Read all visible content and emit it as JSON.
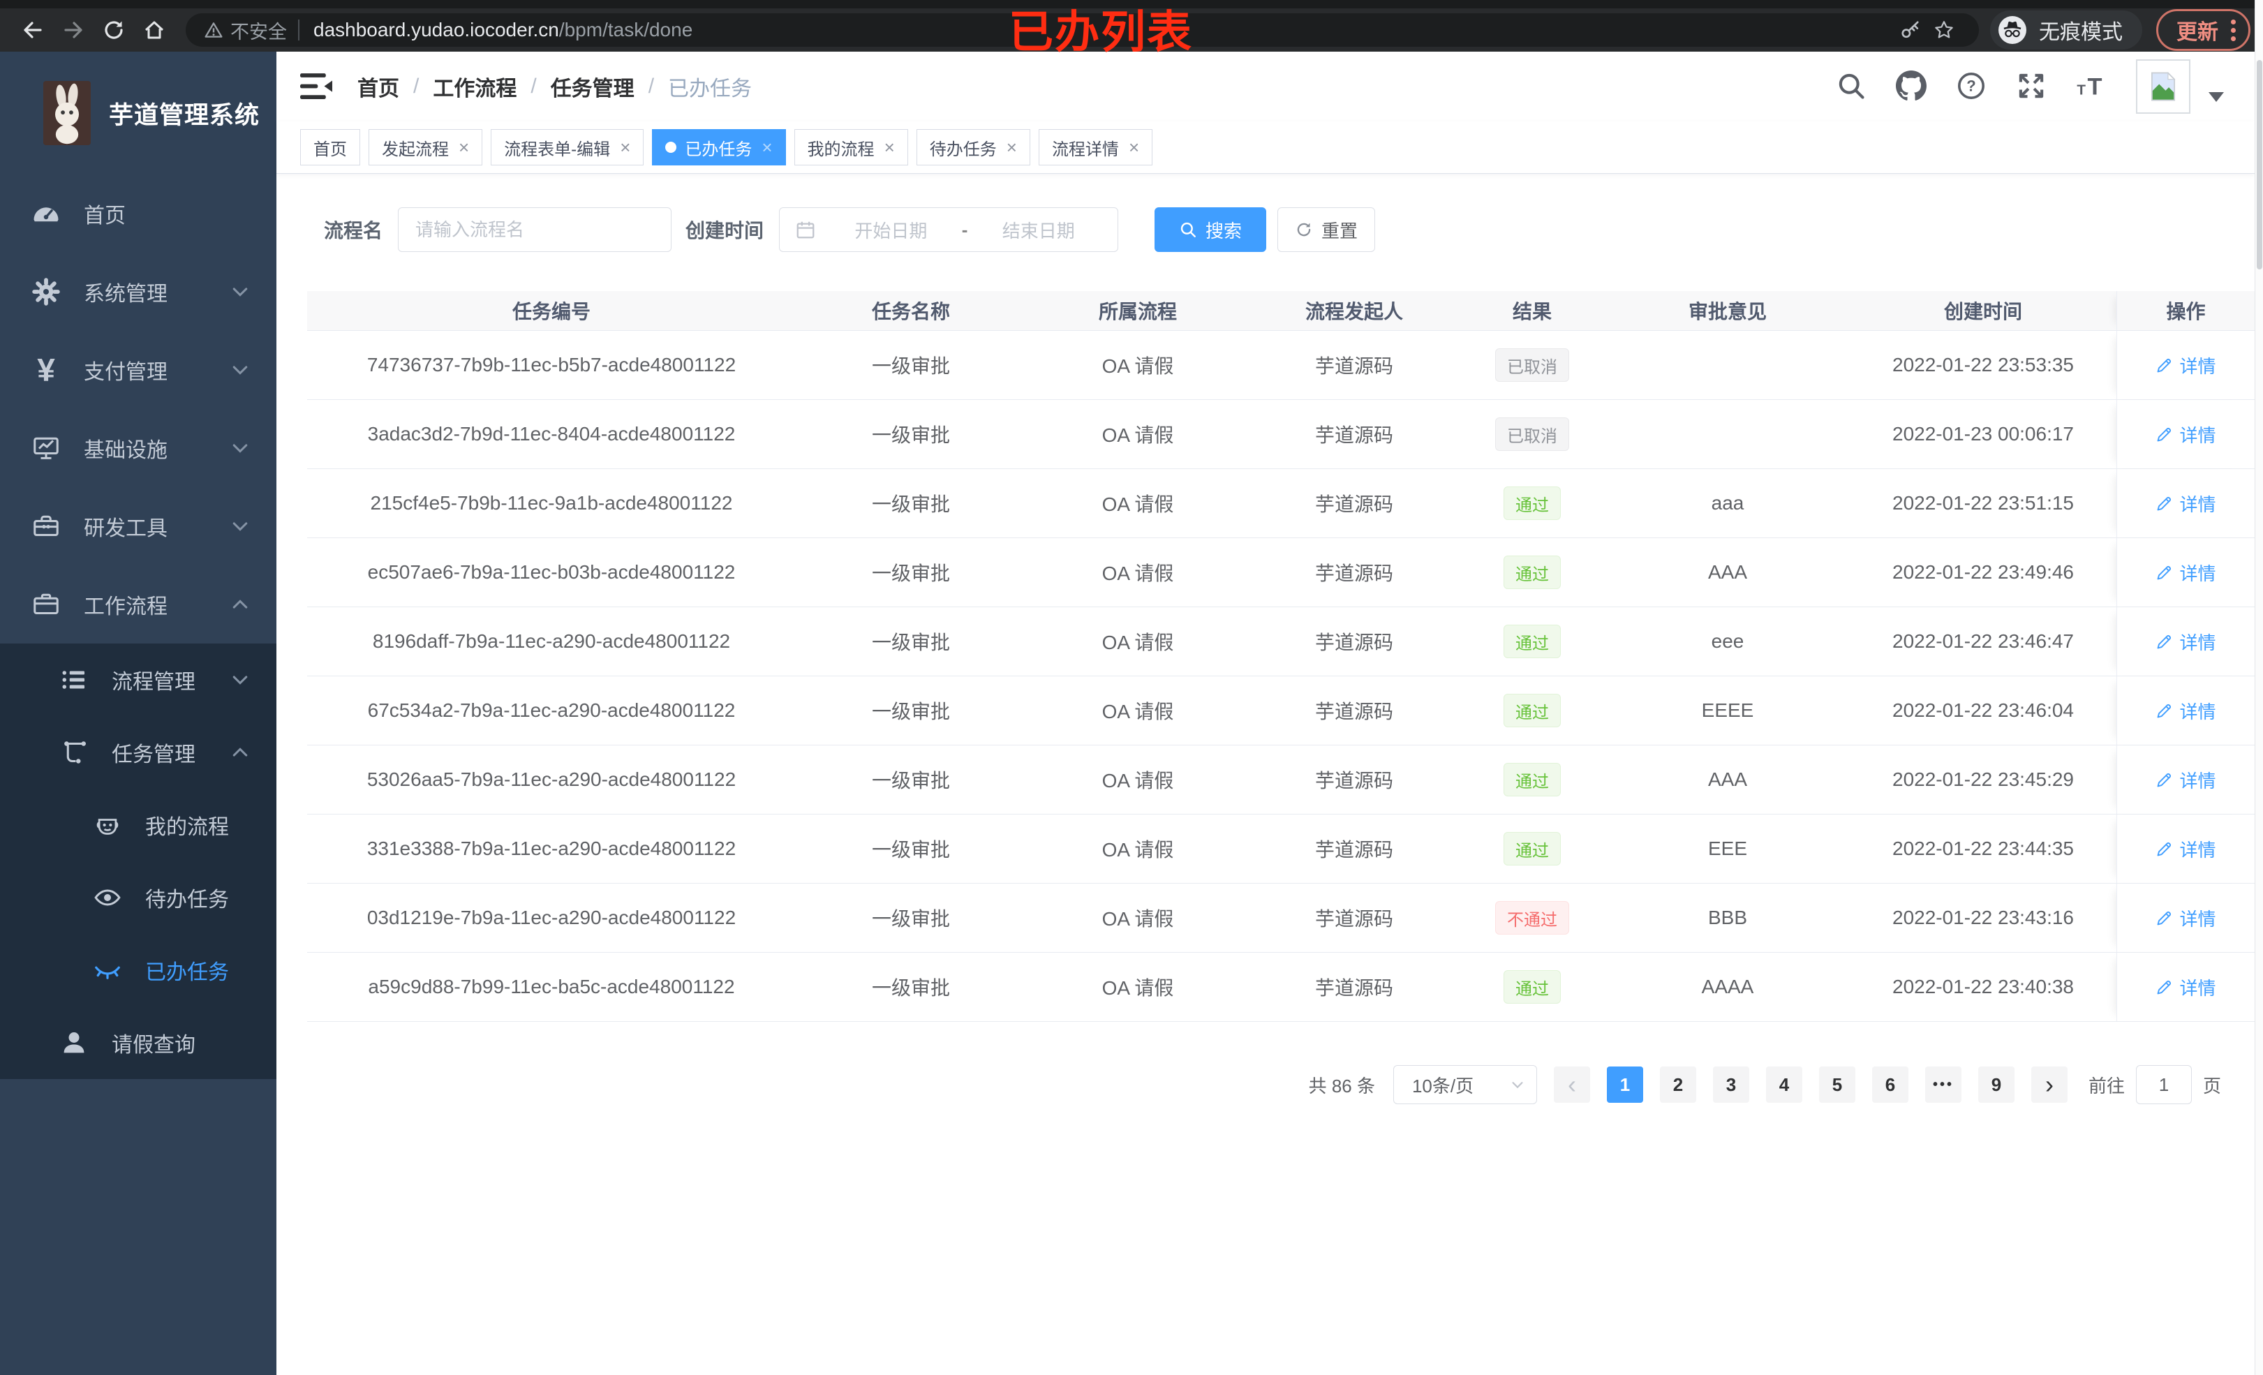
{
  "colors": {
    "accent": "#409eff",
    "success": "#67c23a",
    "danger": "#f56c6c",
    "info": "#909399",
    "sidebar_bg": "#304156",
    "submenu_bg": "#1f2d3d",
    "annotation_red": "#ff2d12",
    "update_salmon": "#f08e82"
  },
  "browser": {
    "security_label": "不安全",
    "url_host": "dashboard.yudao.iocoder.cn",
    "url_path": "/bpm/task/done",
    "incognito_label": "无痕模式",
    "update_label": "更新"
  },
  "annotation": {
    "text": "已办列表"
  },
  "sidebar": {
    "title": "芋道管理系统",
    "items": [
      {
        "key": "home",
        "label": "首页",
        "icon": "gauge-icon",
        "level": 1,
        "submenu": false,
        "chevron": null,
        "active": false
      },
      {
        "key": "system",
        "label": "系统管理",
        "icon": "gear-icon",
        "level": 1,
        "submenu": false,
        "chevron": "down",
        "active": false
      },
      {
        "key": "payment",
        "label": "支付管理",
        "icon": "yen-icon",
        "level": 1,
        "submenu": false,
        "chevron": "down",
        "active": false
      },
      {
        "key": "infra",
        "label": "基础设施",
        "icon": "monitor-icon",
        "level": 1,
        "submenu": false,
        "chevron": "down",
        "active": false
      },
      {
        "key": "devtools",
        "label": "研发工具",
        "icon": "toolbox-icon",
        "level": 1,
        "submenu": false,
        "chevron": "down",
        "active": false
      },
      {
        "key": "workflow",
        "label": "工作流程",
        "icon": "briefcase-icon",
        "level": 1,
        "submenu": false,
        "chevron": "up",
        "active": false
      },
      {
        "key": "process-mgmt",
        "label": "流程管理",
        "icon": "list-icon",
        "level": 2,
        "submenu": true,
        "chevron": "down",
        "active": false
      },
      {
        "key": "task-mgmt",
        "label": "任务管理",
        "icon": "flow-icon",
        "level": 2,
        "submenu": true,
        "chevron": "up",
        "active": false
      },
      {
        "key": "my-process",
        "label": "我的流程",
        "icon": "robot-icon",
        "level": 3,
        "submenu": true,
        "chevron": null,
        "active": false
      },
      {
        "key": "todo-task",
        "label": "待办任务",
        "icon": "eye-icon",
        "level": 3,
        "submenu": true,
        "chevron": null,
        "active": false
      },
      {
        "key": "done-task",
        "label": "已办任务",
        "icon": "eye-closed-icon",
        "level": 3,
        "submenu": true,
        "chevron": null,
        "active": true
      },
      {
        "key": "leave-query",
        "label": "请假查询",
        "icon": "user-icon",
        "level": 2,
        "submenu": true,
        "chevron": null,
        "active": false
      }
    ]
  },
  "navbar": {
    "breadcrumb": [
      "首页",
      "工作流程",
      "任务管理",
      "已办任务"
    ]
  },
  "tabs": [
    {
      "label": "首页",
      "closable": false,
      "active": false
    },
    {
      "label": "发起流程",
      "closable": true,
      "active": false
    },
    {
      "label": "流程表单-编辑",
      "closable": true,
      "active": false
    },
    {
      "label": "已办任务",
      "closable": true,
      "active": true
    },
    {
      "label": "我的流程",
      "closable": true,
      "active": false
    },
    {
      "label": "待办任务",
      "closable": true,
      "active": false
    },
    {
      "label": "流程详情",
      "closable": true,
      "active": false
    }
  ],
  "filter": {
    "name_label": "流程名",
    "name_placeholder": "请输入流程名",
    "time_label": "创建时间",
    "start_placeholder": "开始日期",
    "range_separator": "-",
    "end_placeholder": "结束日期",
    "search_label": "搜索",
    "reset_label": "重置"
  },
  "table": {
    "columns": [
      "任务编号",
      "任务名称",
      "所属流程",
      "流程发起人",
      "结果",
      "审批意见",
      "创建时间",
      "操作"
    ],
    "action_label": "详情",
    "rows": [
      {
        "id": "74736737-7b9b-11ec-b5b7-acde48001122",
        "name": "一级审批",
        "process": "OA 请假",
        "initiator": "芋道源码",
        "result": "已取消",
        "result_type": "info",
        "comment": "",
        "created": "2022-01-22 23:53:35"
      },
      {
        "id": "3adac3d2-7b9d-11ec-8404-acde48001122",
        "name": "一级审批",
        "process": "OA 请假",
        "initiator": "芋道源码",
        "result": "已取消",
        "result_type": "info",
        "comment": "",
        "created": "2022-01-23 00:06:17"
      },
      {
        "id": "215cf4e5-7b9b-11ec-9a1b-acde48001122",
        "name": "一级审批",
        "process": "OA 请假",
        "initiator": "芋道源码",
        "result": "通过",
        "result_type": "success",
        "comment": "aaa",
        "created": "2022-01-22 23:51:15"
      },
      {
        "id": "ec507ae6-7b9a-11ec-b03b-acde48001122",
        "name": "一级审批",
        "process": "OA 请假",
        "initiator": "芋道源码",
        "result": "通过",
        "result_type": "success",
        "comment": "AAA",
        "created": "2022-01-22 23:49:46"
      },
      {
        "id": "8196daff-7b9a-11ec-a290-acde48001122",
        "name": "一级审批",
        "process": "OA 请假",
        "initiator": "芋道源码",
        "result": "通过",
        "result_type": "success",
        "comment": "eee",
        "created": "2022-01-22 23:46:47"
      },
      {
        "id": "67c534a2-7b9a-11ec-a290-acde48001122",
        "name": "一级审批",
        "process": "OA 请假",
        "initiator": "芋道源码",
        "result": "通过",
        "result_type": "success",
        "comment": "EEEE",
        "created": "2022-01-22 23:46:04"
      },
      {
        "id": "53026aa5-7b9a-11ec-a290-acde48001122",
        "name": "一级审批",
        "process": "OA 请假",
        "initiator": "芋道源码",
        "result": "通过",
        "result_type": "success",
        "comment": "AAA",
        "created": "2022-01-22 23:45:29"
      },
      {
        "id": "331e3388-7b9a-11ec-a290-acde48001122",
        "name": "一级审批",
        "process": "OA 请假",
        "initiator": "芋道源码",
        "result": "通过",
        "result_type": "success",
        "comment": "EEE",
        "created": "2022-01-22 23:44:35"
      },
      {
        "id": "03d1219e-7b9a-11ec-a290-acde48001122",
        "name": "一级审批",
        "process": "OA 请假",
        "initiator": "芋道源码",
        "result": "不通过",
        "result_type": "danger",
        "comment": "BBB",
        "created": "2022-01-22 23:43:16"
      },
      {
        "id": "a59c9d88-7b99-11ec-ba5c-acde48001122",
        "name": "一级审批",
        "process": "OA 请假",
        "initiator": "芋道源码",
        "result": "通过",
        "result_type": "success",
        "comment": "AAAA",
        "created": "2022-01-22 23:40:38"
      }
    ]
  },
  "pagination": {
    "total_label": "共 86 条",
    "page_size": "10条/页",
    "pages": [
      "1",
      "2",
      "3",
      "4",
      "5",
      "6",
      "•••",
      "9"
    ],
    "active_page": "1",
    "prev_glyph": "‹",
    "next_glyph": "›",
    "jump_prefix": "前往",
    "jump_value": "1",
    "jump_suffix": "页"
  }
}
